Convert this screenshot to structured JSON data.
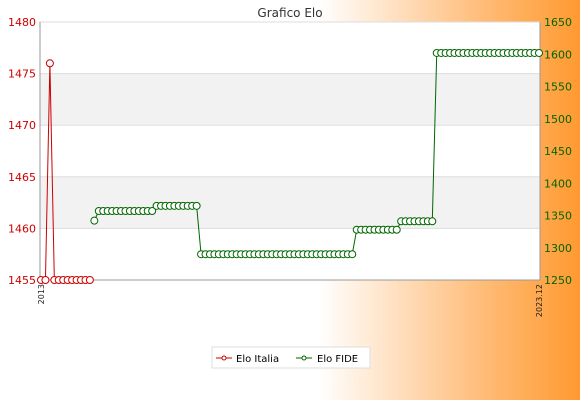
{
  "chart_data": {
    "type": "line",
    "title": "Grafico Elo",
    "y_left": {
      "ylim": [
        1455,
        1480
      ],
      "ticks": [
        1455,
        1460,
        1465,
        1470,
        1475,
        1480
      ],
      "color": "#cc0000"
    },
    "y_right": {
      "ylim": [
        1250,
        1650
      ],
      "ticks": [
        1250,
        1300,
        1350,
        1400,
        1450,
        1500,
        1550,
        1600,
        1650
      ],
      "color": "#006600"
    },
    "x_first_label": "2013",
    "x_last_label": "2023.12",
    "legend": {
      "position": "bottom-center"
    },
    "grid": {
      "horizontal_bands": true
    },
    "series": [
      {
        "name": "Elo Italia",
        "axis": "left",
        "color": "#cc0000",
        "marker": "circle",
        "values": [
          1455,
          1455,
          1476,
          1455,
          1455,
          1455,
          1455,
          1455,
          1455,
          1455,
          1455,
          1455
        ],
        "start_index": 0
      },
      {
        "name": "Elo FIDE",
        "axis": "right",
        "color": "#006600",
        "marker": "circle",
        "start_index": 12,
        "segments": [
          {
            "count": 1,
            "value": 1342
          },
          {
            "count": 13,
            "value": 1357
          },
          {
            "count": 10,
            "value": 1365
          },
          {
            "count": 35,
            "value": 1290
          },
          {
            "count": 10,
            "value": 1328
          },
          {
            "count": 8,
            "value": 1341
          },
          {
            "count": 24,
            "value": 1602
          }
        ]
      }
    ]
  }
}
